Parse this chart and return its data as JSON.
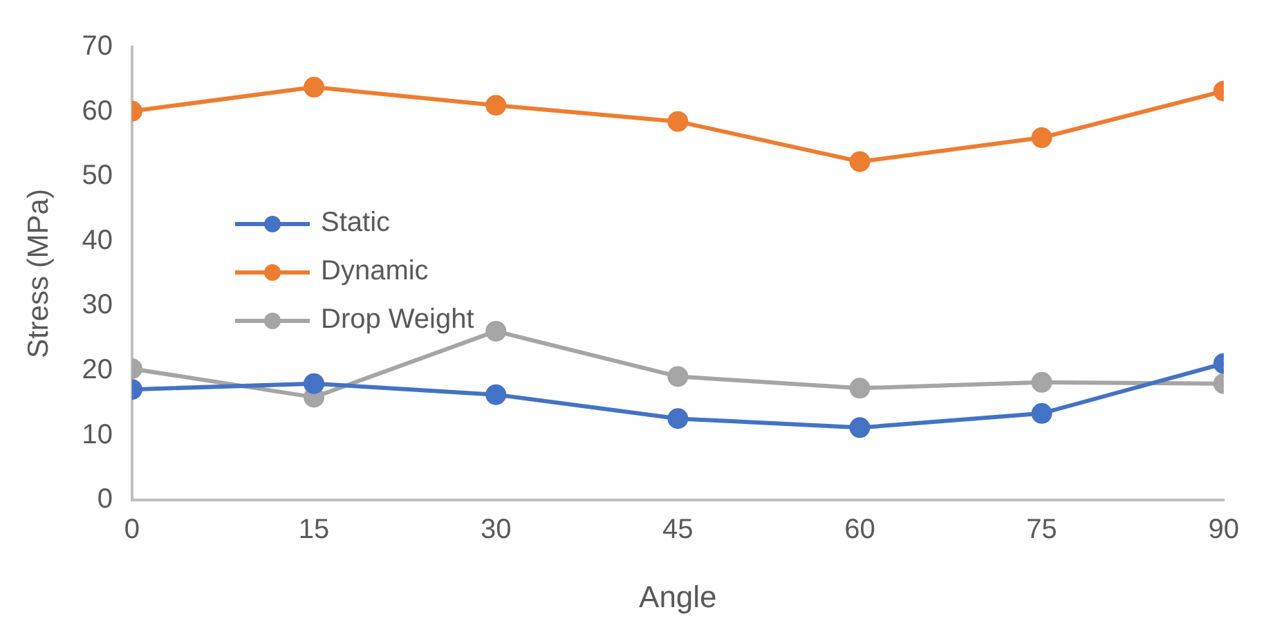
{
  "chart_data": {
    "type": "line",
    "xlabel": "Angle",
    "ylabel": "Stress (MPa)",
    "x": [
      0,
      15,
      30,
      45,
      60,
      75,
      90
    ],
    "series": [
      {
        "name": "Static",
        "color": "#4472c4",
        "values": [
          17.1,
          18,
          16.3,
          12.6,
          11.2,
          13.4,
          21.1
        ]
      },
      {
        "name": "Dynamic",
        "color": "#ed7d31",
        "values": [
          60.1,
          63.8,
          61,
          58.5,
          52.3,
          56,
          63.2
        ]
      },
      {
        "name": "Drop Weight",
        "color": "#a5a5a5",
        "values": [
          20.3,
          15.9,
          26.1,
          19.1,
          17.3,
          18.2,
          18
        ]
      }
    ],
    "xlim": [
      0,
      90
    ],
    "xticks": [
      0,
      15,
      30,
      45,
      60,
      75,
      90
    ],
    "ylim": [
      0,
      70
    ],
    "yticks": [
      0,
      10,
      20,
      30,
      40,
      50,
      60,
      70
    ],
    "grid": false,
    "legend": "left",
    "marker": "circle",
    "line_style": "solid"
  }
}
